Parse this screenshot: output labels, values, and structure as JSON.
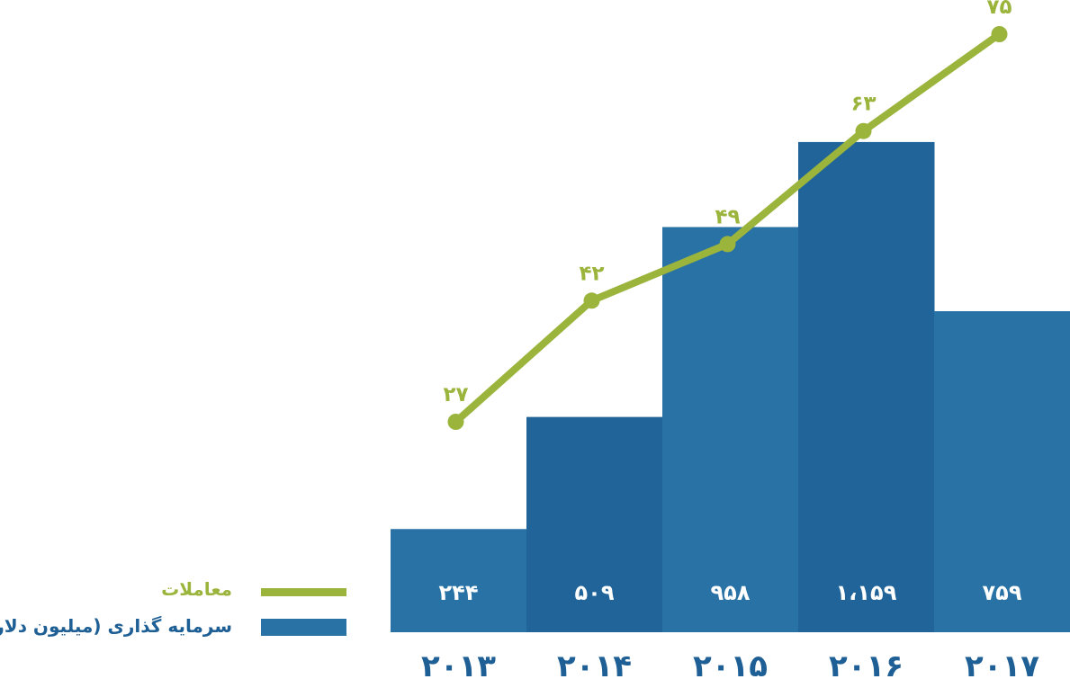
{
  "chart_data": {
    "type": "bar",
    "categories": [
      "2013",
      "2014",
      "2015",
      "2016",
      "2017"
    ],
    "category_labels": [
      "۲۰۱۳",
      "۲۰۱۴",
      "۲۰۱۵",
      "۲۰۱۶",
      "۲۰۱۷"
    ],
    "series": [
      {
        "name": "سرمایه گذاری (میلیون دلار)",
        "kind": "bar",
        "values": [
          244,
          509,
          958,
          1159,
          759
        ],
        "labels": [
          "۲۴۴",
          "۵۰۹",
          "۹۵۸",
          "۱،۱۵۹",
          "۷۵۹"
        ],
        "color": "#2872a6",
        "alt_color": "#21649a"
      },
      {
        "name": "معاملات",
        "kind": "line",
        "values": [
          27,
          42,
          49,
          63,
          75
        ],
        "labels": [
          "۲۷",
          "۴۲",
          "۴۹",
          "۶۳",
          "۷۵"
        ],
        "color": "#9ab43c"
      }
    ],
    "legend_position": "bottom-left",
    "grid": false,
    "year_label_color": "#1e5f95"
  }
}
